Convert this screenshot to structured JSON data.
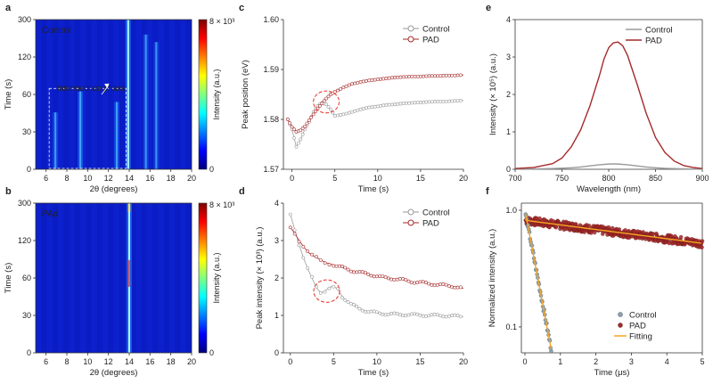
{
  "chart_data": [
    {
      "panel": "a",
      "type": "heatmap",
      "label_text": "Control",
      "annotation": "Intermediate phase",
      "xlabel": "2θ (degrees)",
      "ylabel": "Time (s)",
      "xlim": [
        5,
        20
      ],
      "ylim": [
        0,
        300
      ],
      "xticks": [
        "6",
        "8",
        "10",
        "12",
        "14",
        "16",
        "18",
        "20"
      ],
      "yticks": [
        "0",
        "30",
        "60",
        "120",
        "300"
      ],
      "colorbar": {
        "label": "Intensity (a.u.)",
        "max": "8 × 10³",
        "min": "0"
      },
      "box_x": [
        6.3,
        13.7
      ],
      "box_y_fraction": 0.54,
      "streaks": [
        {
          "x": 6.9,
          "top": 0.38,
          "strength": 0.45
        },
        {
          "x": 9.3,
          "top": 0.52,
          "strength": 0.65
        },
        {
          "x": 12.8,
          "top": 0.45,
          "strength": 0.5
        },
        {
          "x": 13.9,
          "top": 1.0,
          "strength": 1.0
        },
        {
          "x": 15.6,
          "top": 0.9,
          "strength": 0.35
        },
        {
          "x": 16.6,
          "top": 0.85,
          "strength": 0.3
        }
      ]
    },
    {
      "panel": "b",
      "type": "heatmap",
      "label_text": "PAd",
      "xlabel": "2θ (degrees)",
      "ylabel": "Time (s)",
      "xlim": [
        5,
        20
      ],
      "ylim": [
        0,
        300
      ],
      "xticks": [
        "6",
        "8",
        "10",
        "12",
        "14",
        "16",
        "18",
        "20"
      ],
      "yticks": [
        "0",
        "30",
        "60",
        "120",
        "300"
      ],
      "colorbar": {
        "label": "Intensity (a.u.)",
        "max": "8 × 10³",
        "min": "0"
      },
      "streaks": [
        {
          "x": 14.0,
          "top": 1.0,
          "strength": 1.0
        }
      ]
    },
    {
      "panel": "c",
      "type": "line",
      "xlabel": "Time (s)",
      "ylabel": "Peak position (eV)",
      "xlim": [
        -1,
        20
      ],
      "ylim": [
        1.57,
        1.6
      ],
      "xticks": [
        0,
        5,
        10,
        15,
        20
      ],
      "yticks": [
        1.57,
        1.58,
        1.59,
        1.6
      ],
      "ytick_labels": [
        "1.57",
        "1.58",
        "1.59",
        "1.60"
      ],
      "series": [
        {
          "name": "Control",
          "color": "#9a9a9a",
          "x": [
            -0.5,
            0,
            0.5,
            1,
            1.5,
            2,
            2.5,
            3,
            3.5,
            4,
            4.5,
            5,
            6,
            7,
            8,
            9,
            10,
            11,
            12,
            13,
            14,
            15,
            16,
            17,
            18,
            19,
            20
          ],
          "y": [
            1.58,
            1.578,
            1.5745,
            1.576,
            1.578,
            1.5795,
            1.5815,
            1.5827,
            1.5833,
            1.583,
            1.582,
            1.5807,
            1.581,
            1.5815,
            1.582,
            1.5824,
            1.5826,
            1.5829,
            1.583,
            1.5832,
            1.5833,
            1.5834,
            1.5835,
            1.5836,
            1.5836,
            1.5837,
            1.5838
          ]
        },
        {
          "name": "PAD",
          "color": "#a52a2a",
          "x": [
            -0.5,
            0,
            0.5,
            1,
            1.5,
            2,
            2.5,
            3,
            3.5,
            4,
            4.5,
            5,
            6,
            7,
            8,
            9,
            10,
            11,
            12,
            13,
            14,
            15,
            16,
            17,
            18,
            19,
            20
          ],
          "y": [
            1.58,
            1.5785,
            1.5775,
            1.5778,
            1.5786,
            1.5798,
            1.581,
            1.5822,
            1.5832,
            1.5842,
            1.585,
            1.5855,
            1.5864,
            1.5871,
            1.5875,
            1.5878,
            1.588,
            1.5882,
            1.5884,
            1.5885,
            1.5886,
            1.5886,
            1.5887,
            1.5887,
            1.5888,
            1.5888,
            1.5889
          ]
        }
      ],
      "legend": "top-right",
      "highlight": {
        "cx": 4,
        "cy": 1.5835,
        "rx": 1.5,
        "ry": 0.0022
      }
    },
    {
      "panel": "d",
      "type": "line",
      "xlabel": "Time (s)",
      "ylabel": "Peak intensity (× 10³) (a.u.)",
      "xlim": [
        -0.8,
        20
      ],
      "ylim": [
        0,
        4
      ],
      "xticks": [
        0,
        5,
        10,
        15,
        20
      ],
      "yticks": [
        0,
        1,
        2,
        3,
        4
      ],
      "ytick_labels": [
        "0",
        "1",
        "2",
        "3",
        "4"
      ],
      "series": [
        {
          "name": "Control",
          "color": "#9a9a9a",
          "x": [
            0,
            0.5,
            1,
            1.5,
            2,
            2.5,
            3,
            3.5,
            4,
            4.5,
            5,
            5.5,
            6,
            7,
            8,
            9,
            10,
            11,
            12,
            13,
            14,
            15,
            16,
            17,
            18,
            19,
            20
          ],
          "y": [
            3.7,
            3.3,
            2.9,
            2.55,
            2.25,
            2.0,
            1.75,
            1.6,
            1.65,
            1.75,
            1.78,
            1.7,
            1.5,
            1.3,
            1.18,
            1.1,
            1.07,
            1.04,
            1.03,
            1.02,
            1.02,
            1.01,
            1.0,
            1.0,
            0.99,
            0.98,
            0.97
          ]
        },
        {
          "name": "PAD",
          "color": "#a52a2a",
          "x": [
            0,
            0.5,
            1,
            1.5,
            2,
            2.5,
            3,
            3.5,
            4,
            4.5,
            5,
            6,
            7,
            8,
            9,
            10,
            11,
            12,
            13,
            14,
            15,
            16,
            17,
            18,
            19,
            20
          ],
          "y": [
            3.35,
            3.2,
            3.0,
            2.85,
            2.7,
            2.6,
            2.55,
            2.48,
            2.42,
            2.38,
            2.35,
            2.28,
            2.2,
            2.15,
            2.1,
            2.05,
            2.0,
            1.98,
            1.95,
            1.9,
            1.88,
            1.85,
            1.82,
            1.8,
            1.77,
            1.72
          ]
        }
      ],
      "legend": "top-right",
      "highlight": {
        "cx": 4.2,
        "cy": 1.65,
        "rx": 1.5,
        "ry": 0.3
      }
    },
    {
      "panel": "e",
      "type": "line",
      "xlabel": "Wavelength (nm)",
      "ylabel": "Intensity (× 10⁵) (a.u.)",
      "xlim": [
        700,
        900
      ],
      "ylim": [
        0,
        4
      ],
      "xticks": [
        700,
        750,
        800,
        850,
        900
      ],
      "yticks": [
        0,
        1,
        2,
        3,
        4
      ],
      "ytick_labels": [
        "0",
        "1",
        "2",
        "3",
        "4"
      ],
      "series": [
        {
          "name": "Control",
          "color": "#9a9a9a",
          "x": [
            700,
            720,
            740,
            760,
            770,
            780,
            790,
            800,
            805,
            810,
            820,
            830,
            840,
            850,
            860,
            880,
            900
          ],
          "y": [
            0.01,
            0.01,
            0.02,
            0.04,
            0.06,
            0.09,
            0.12,
            0.14,
            0.145,
            0.14,
            0.12,
            0.09,
            0.06,
            0.04,
            0.025,
            0.01,
            0.005
          ]
        },
        {
          "name": "PAD",
          "color": "#a52a2a",
          "x": [
            700,
            720,
            740,
            750,
            760,
            770,
            780,
            790,
            795,
            800,
            805,
            810,
            815,
            820,
            830,
            840,
            850,
            860,
            870,
            880,
            890,
            900
          ],
          "y": [
            0.02,
            0.05,
            0.15,
            0.3,
            0.6,
            1.05,
            1.7,
            2.5,
            2.95,
            3.25,
            3.38,
            3.4,
            3.3,
            3.05,
            2.3,
            1.5,
            0.85,
            0.45,
            0.22,
            0.1,
            0.05,
            0.02
          ]
        }
      ],
      "legend": "top-right"
    },
    {
      "panel": "f",
      "type": "scatter",
      "xlabel": "Time (μs)",
      "ylabel": "Normalized intensity (a.u.)",
      "xlim": [
        -0.1,
        5
      ],
      "ylim": [
        0.06,
        1.15
      ],
      "yscale": "log",
      "xticks": [
        0,
        1,
        2,
        3,
        4,
        5
      ],
      "yticks": [
        0.1,
        1.0
      ],
      "ytick_labels": [
        "0.1",
        "1.0"
      ],
      "series": [
        {
          "name": "Control",
          "color": "#8aa0b4",
          "tau": 0.27,
          "x_start": 0.02,
          "x_end": 0.8
        },
        {
          "name": "PAD",
          "color": "#a52a2a",
          "amplitude": 0.82,
          "tau": 11,
          "x_start": 0.02,
          "x_end": 5
        }
      ],
      "fit": {
        "name": "Fitting",
        "color": "#f5a623"
      },
      "legend": "bottom-right"
    }
  ],
  "panel_labels": {
    "a": "a",
    "b": "b",
    "c": "c",
    "d": "d",
    "e": "e",
    "f": "f"
  }
}
